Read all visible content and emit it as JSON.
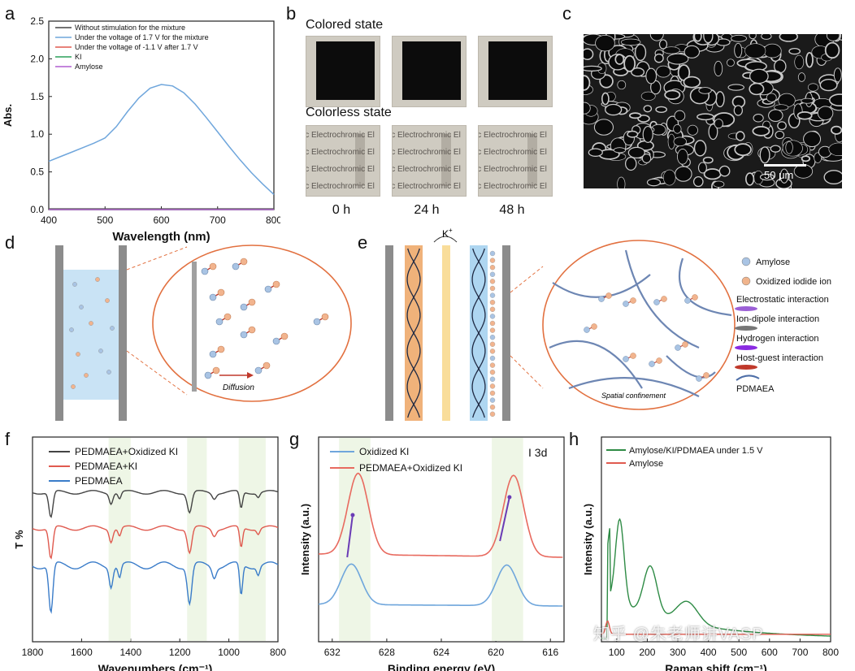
{
  "panels": {
    "a": "a",
    "b": "b",
    "c": "c",
    "d": "d",
    "e": "e",
    "f": "f",
    "g": "g",
    "h": "h"
  },
  "panel_b": {
    "colored_title": "Colored state",
    "colorless_title": "Colorless state",
    "times": [
      "0 h",
      "24 h",
      "48 h"
    ],
    "photo_text": "ic Electrochromic El"
  },
  "panel_c": {
    "scale_bar": "50 μm"
  },
  "panel_d": {
    "diffusion_label": "Diffusion"
  },
  "panel_e": {
    "ion_label": "K",
    "ion_charge": "+",
    "confinement_label": "Spatial confinement",
    "legend": [
      {
        "name": "Amylose",
        "color": "#a9c4e4"
      },
      {
        "name": "Oxidized iodide ion",
        "color": "#f0b48c"
      },
      {
        "name": "Electrostatic interaction",
        "color": "#9b5fd6"
      },
      {
        "name": "Ion-dipole interaction",
        "color": "#777777"
      },
      {
        "name": "Hydrogen interaction",
        "color": "#8a2be2"
      },
      {
        "name": "Host-guest interaction",
        "color": "#c0392b"
      },
      {
        "name": "PDMAEA",
        "color": "#4f6fa8"
      }
    ]
  },
  "watermark": "知乎 @朱老师讲VASP",
  "chart_data": [
    {
      "type": "line",
      "panel": "a",
      "xlabel": "Wavelength (nm)",
      "ylabel": "Abs.",
      "xlim": [
        400,
        800
      ],
      "ylim": [
        0,
        2.5
      ],
      "xticks": [
        400,
        500,
        600,
        700,
        800
      ],
      "yticks": [
        0.0,
        0.5,
        1.0,
        1.5,
        2.0,
        2.5
      ],
      "legend_position": "top-left",
      "series": [
        {
          "name": "Without stimulation for the mixture",
          "color": "#444444",
          "x": [
            400,
            800
          ],
          "y": [
            0.01,
            0.01
          ]
        },
        {
          "name": "Under the voltage of 1.7 V for the mixture",
          "color": "#6fa6dc",
          "x": [
            400,
            420,
            440,
            460,
            480,
            500,
            520,
            540,
            560,
            580,
            600,
            620,
            640,
            660,
            680,
            700,
            720,
            740,
            760,
            780,
            800
          ],
          "y": [
            0.64,
            0.7,
            0.76,
            0.82,
            0.88,
            0.95,
            1.1,
            1.3,
            1.48,
            1.61,
            1.66,
            1.64,
            1.55,
            1.4,
            1.22,
            1.03,
            0.84,
            0.66,
            0.49,
            0.34,
            0.2
          ]
        },
        {
          "name": "Under the voltage of -1.1 V after 1.7 V",
          "color": "#e05a4f",
          "x": [
            400,
            800
          ],
          "y": [
            0.0,
            0.0
          ]
        },
        {
          "name": "KI",
          "color": "#2ca05a",
          "x": [
            400,
            800
          ],
          "y": [
            0.0,
            0.0
          ]
        },
        {
          "name": "Amylose",
          "color": "#b05fd0",
          "x": [
            400,
            800
          ],
          "y": [
            0.0,
            0.0
          ]
        }
      ]
    },
    {
      "type": "line",
      "panel": "f",
      "xlabel": "Wavenumbers (cm⁻¹)",
      "ylabel": "T %",
      "xlim": [
        1800,
        800
      ],
      "xticks": [
        1800,
        1600,
        1400,
        1200,
        1000,
        800
      ],
      "legend_position": "top-left",
      "series": [
        {
          "name": "PEDMAEA+Oxidized KI",
          "color": "#444444"
        },
        {
          "name": "PEDMAEA+KI",
          "color": "#e05a4f"
        },
        {
          "name": "PEDMAEA",
          "color": "#3a7cc9"
        }
      ]
    },
    {
      "type": "line",
      "panel": "g",
      "xlabel": "Binding energy (eV)",
      "ylabel": "Intensity (a.u.)",
      "annotation": "I 3d",
      "xlim": [
        633,
        615
      ],
      "xticks": [
        632,
        628,
        624,
        620,
        616
      ],
      "legend_position": "top-left",
      "series": [
        {
          "name": "Oxidized KI",
          "color": "#6fa6dc",
          "peaks": [
            630.6,
            619.2
          ]
        },
        {
          "name": "PEDMAEA+Oxidized KI",
          "color": "#e86a5f",
          "peaks": [
            630.1,
            618.7
          ]
        }
      ]
    },
    {
      "type": "line",
      "panel": "h",
      "xlabel": "Raman shift (cm⁻¹)",
      "ylabel": "Intensity (a.u.)",
      "xlim": [
        50,
        800
      ],
      "xticks": [
        100,
        200,
        300,
        400,
        500,
        600,
        700,
        800
      ],
      "legend_position": "top-left",
      "series": [
        {
          "name": "Amylose/KI/PDMAEA under 1.5 V",
          "color": "#2e8b45",
          "peaks": [
            110,
            210,
            330
          ]
        },
        {
          "name": "Amylose",
          "color": "#e05a4f"
        }
      ]
    }
  ]
}
